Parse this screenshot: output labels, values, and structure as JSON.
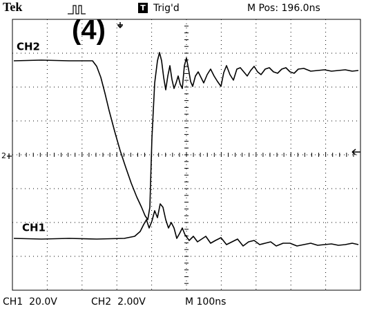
{
  "header": {
    "brand": "Tek",
    "trigger_status": "Trig'd",
    "position": "M Pos: 196.0ns"
  },
  "annotation": "(4)",
  "channels": {
    "ch2_label": "CH2",
    "ch1_label": "CH1",
    "ch2_marker": "2"
  },
  "footer": {
    "ch1_scale": "CH1  20.0V",
    "ch2_scale": "CH2  2.00V",
    "time_scale": "M 100ns"
  }
}
